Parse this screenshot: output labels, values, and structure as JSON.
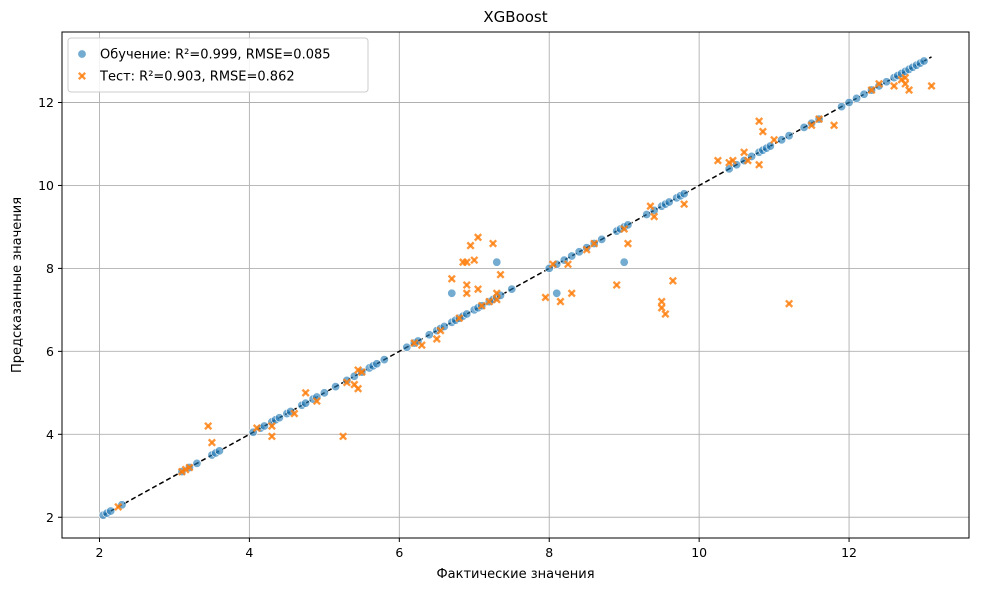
{
  "chart_data": {
    "type": "scatter",
    "title": "XGBoost",
    "xlabel": "Фактические значения",
    "ylabel": "Предсказанные значения",
    "xlim": [
      1.5,
      13.6
    ],
    "ylim": [
      1.5,
      13.7
    ],
    "x_ticks": [
      2,
      4,
      6,
      8,
      10,
      12
    ],
    "y_ticks": [
      2,
      4,
      6,
      8,
      10,
      12
    ],
    "grid": true,
    "legend_position": "top-left",
    "reference_line": {
      "from": [
        2.05,
        2.05
      ],
      "to": [
        13.1,
        13.1
      ],
      "color": "#000000",
      "style": "dashed"
    },
    "series": [
      {
        "name": "Обучение: R²=0.999, RMSE=0.085",
        "marker": "circle",
        "color": "#1f77b4",
        "points": [
          [
            2.05,
            2.05
          ],
          [
            2.1,
            2.1
          ],
          [
            2.15,
            2.15
          ],
          [
            2.3,
            2.3
          ],
          [
            3.1,
            3.1
          ],
          [
            3.2,
            3.2
          ],
          [
            3.3,
            3.3
          ],
          [
            3.5,
            3.5
          ],
          [
            3.55,
            3.55
          ],
          [
            3.6,
            3.6
          ],
          [
            4.05,
            4.05
          ],
          [
            4.15,
            4.15
          ],
          [
            4.2,
            4.2
          ],
          [
            4.3,
            4.3
          ],
          [
            4.35,
            4.35
          ],
          [
            4.4,
            4.4
          ],
          [
            4.5,
            4.5
          ],
          [
            4.55,
            4.55
          ],
          [
            4.7,
            4.7
          ],
          [
            4.75,
            4.75
          ],
          [
            4.85,
            4.85
          ],
          [
            4.9,
            4.9
          ],
          [
            5.0,
            5.0
          ],
          [
            5.15,
            5.15
          ],
          [
            5.3,
            5.3
          ],
          [
            5.4,
            5.4
          ],
          [
            5.5,
            5.5
          ],
          [
            5.6,
            5.6
          ],
          [
            5.65,
            5.65
          ],
          [
            5.7,
            5.7
          ],
          [
            5.8,
            5.8
          ],
          [
            6.1,
            6.1
          ],
          [
            6.2,
            6.2
          ],
          [
            6.25,
            6.25
          ],
          [
            6.4,
            6.4
          ],
          [
            6.5,
            6.5
          ],
          [
            6.55,
            6.55
          ],
          [
            6.6,
            6.6
          ],
          [
            6.7,
            6.7
          ],
          [
            6.75,
            6.75
          ],
          [
            6.8,
            6.8
          ],
          [
            6.85,
            6.85
          ],
          [
            6.9,
            6.9
          ],
          [
            7.0,
            7.0
          ],
          [
            7.05,
            7.05
          ],
          [
            7.1,
            7.1
          ],
          [
            7.2,
            7.2
          ],
          [
            7.25,
            7.25
          ],
          [
            7.3,
            7.3
          ],
          [
            7.35,
            7.35
          ],
          [
            7.5,
            7.5
          ],
          [
            8.0,
            8.0
          ],
          [
            8.1,
            8.1
          ],
          [
            8.2,
            8.2
          ],
          [
            8.3,
            8.3
          ],
          [
            8.4,
            8.4
          ],
          [
            8.5,
            8.5
          ],
          [
            8.6,
            8.6
          ],
          [
            8.7,
            8.7
          ],
          [
            8.9,
            8.9
          ],
          [
            8.95,
            8.95
          ],
          [
            9.0,
            9.0
          ],
          [
            9.05,
            9.05
          ],
          [
            9.3,
            9.3
          ],
          [
            9.4,
            9.4
          ],
          [
            9.5,
            9.5
          ],
          [
            9.55,
            9.55
          ],
          [
            9.6,
            9.6
          ],
          [
            9.7,
            9.7
          ],
          [
            9.75,
            9.75
          ],
          [
            9.8,
            9.8
          ],
          [
            10.4,
            10.4
          ],
          [
            10.5,
            10.5
          ],
          [
            10.6,
            10.6
          ],
          [
            10.7,
            10.7
          ],
          [
            10.8,
            10.8
          ],
          [
            10.85,
            10.85
          ],
          [
            10.9,
            10.9
          ],
          [
            10.95,
            10.95
          ],
          [
            11.1,
            11.1
          ],
          [
            11.2,
            11.2
          ],
          [
            11.4,
            11.4
          ],
          [
            11.5,
            11.5
          ],
          [
            11.6,
            11.6
          ],
          [
            11.9,
            11.9
          ],
          [
            12.0,
            12.0
          ],
          [
            12.1,
            12.1
          ],
          [
            12.2,
            12.2
          ],
          [
            12.3,
            12.3
          ],
          [
            12.4,
            12.4
          ],
          [
            12.5,
            12.5
          ],
          [
            12.6,
            12.6
          ],
          [
            12.65,
            12.65
          ],
          [
            12.7,
            12.7
          ],
          [
            12.75,
            12.75
          ],
          [
            12.8,
            12.8
          ],
          [
            12.85,
            12.85
          ],
          [
            12.9,
            12.9
          ],
          [
            12.95,
            12.95
          ],
          [
            13.0,
            13.0
          ],
          [
            6.7,
            7.4
          ],
          [
            7.3,
            8.15
          ],
          [
            8.1,
            7.4
          ],
          [
            9.0,
            8.15
          ]
        ]
      },
      {
        "name": "Тест: R²=0.903, RMSE=0.862",
        "marker": "x",
        "color": "#ff7f0e",
        "points": [
          [
            2.25,
            2.25
          ],
          [
            3.1,
            3.1
          ],
          [
            3.15,
            3.15
          ],
          [
            3.2,
            3.2
          ],
          [
            3.45,
            4.2
          ],
          [
            3.5,
            3.8
          ],
          [
            4.1,
            4.15
          ],
          [
            4.3,
            4.2
          ],
          [
            4.3,
            3.95
          ],
          [
            4.6,
            4.5
          ],
          [
            4.75,
            5.0
          ],
          [
            4.9,
            4.8
          ],
          [
            5.25,
            3.95
          ],
          [
            5.3,
            5.25
          ],
          [
            5.4,
            5.2
          ],
          [
            5.45,
            5.1
          ],
          [
            5.45,
            5.55
          ],
          [
            5.5,
            5.5
          ],
          [
            6.2,
            6.2
          ],
          [
            6.3,
            6.15
          ],
          [
            6.5,
            6.3
          ],
          [
            6.55,
            6.5
          ],
          [
            6.7,
            7.75
          ],
          [
            6.8,
            6.8
          ],
          [
            6.85,
            8.15
          ],
          [
            6.9,
            8.15
          ],
          [
            6.9,
            7.6
          ],
          [
            6.9,
            7.4
          ],
          [
            6.95,
            8.55
          ],
          [
            7.0,
            8.2
          ],
          [
            7.05,
            8.75
          ],
          [
            7.05,
            7.5
          ],
          [
            7.1,
            7.1
          ],
          [
            7.2,
            7.2
          ],
          [
            7.25,
            8.6
          ],
          [
            7.3,
            7.4
          ],
          [
            7.3,
            7.25
          ],
          [
            7.35,
            7.85
          ],
          [
            7.95,
            7.3
          ],
          [
            8.05,
            8.1
          ],
          [
            8.15,
            7.2
          ],
          [
            8.25,
            8.1
          ],
          [
            8.3,
            7.4
          ],
          [
            8.5,
            8.45
          ],
          [
            8.6,
            8.6
          ],
          [
            8.9,
            7.6
          ],
          [
            9.0,
            8.95
          ],
          [
            9.05,
            8.6
          ],
          [
            9.35,
            9.5
          ],
          [
            9.4,
            9.25
          ],
          [
            9.5,
            7.2
          ],
          [
            9.5,
            7.05
          ],
          [
            9.55,
            6.9
          ],
          [
            9.65,
            7.7
          ],
          [
            9.8,
            9.55
          ],
          [
            10.25,
            10.6
          ],
          [
            10.4,
            10.55
          ],
          [
            10.45,
            10.6
          ],
          [
            10.6,
            10.8
          ],
          [
            10.65,
            10.6
          ],
          [
            10.8,
            11.55
          ],
          [
            10.8,
            10.5
          ],
          [
            10.85,
            11.3
          ],
          [
            11.0,
            11.1
          ],
          [
            11.2,
            7.15
          ],
          [
            11.5,
            11.45
          ],
          [
            11.6,
            11.6
          ],
          [
            11.8,
            11.45
          ],
          [
            12.3,
            12.3
          ],
          [
            12.4,
            12.45
          ],
          [
            12.6,
            12.4
          ],
          [
            12.7,
            12.55
          ],
          [
            12.75,
            12.6
          ],
          [
            12.75,
            12.45
          ],
          [
            12.8,
            12.3
          ],
          [
            13.1,
            12.4
          ]
        ]
      }
    ]
  }
}
